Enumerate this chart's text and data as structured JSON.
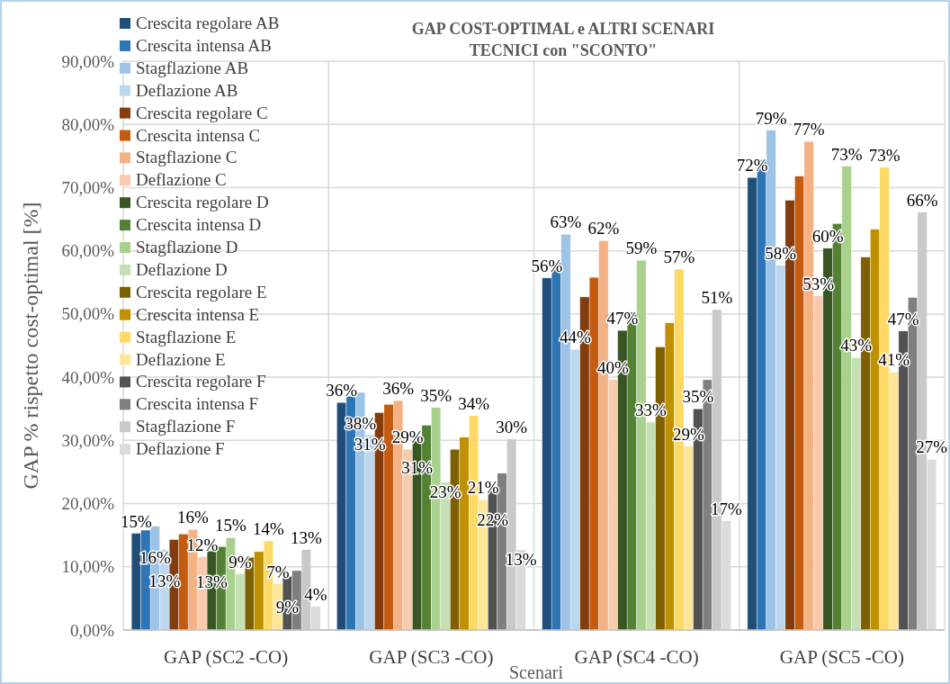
{
  "chart_data": {
    "type": "bar",
    "title": "GAP COST-OPTIMAL e ALTRI SCENARI\nTECNICI con \"SCONTO\"",
    "xlabel": "Scenari",
    "ylabel": "GAP % rispetto cost-optimal [%]",
    "categories": [
      "GAP (SC2 -CO)",
      "GAP (SC3 -CO)",
      "GAP (SC4 -CO)",
      "GAP (SC5 -CO)"
    ],
    "ylim": [
      0,
      90
    ],
    "yticks": [
      {
        "value": 0,
        "label": "0,00%"
      },
      {
        "value": 10,
        "label": "10,00%"
      },
      {
        "value": 20,
        "label": "20,00%"
      },
      {
        "value": 30,
        "label": "30,00%"
      },
      {
        "value": 40,
        "label": "40,00%"
      },
      {
        "value": 50,
        "label": "50,00%"
      },
      {
        "value": 60,
        "label": "60,00%"
      },
      {
        "value": 70,
        "label": "70,00%"
      },
      {
        "value": 80,
        "label": "80,00%"
      },
      {
        "value": 90,
        "label": "90,00%"
      }
    ],
    "grid": true,
    "legend": "top left",
    "series": [
      {
        "name": "Crescita regolare AB",
        "color": "#1f4e79",
        "values": [
          15.3,
          36.0,
          55.7,
          71.6
        ],
        "value_labels": [
          "15%",
          "36%",
          "56%",
          "72%"
        ]
      },
      {
        "name": "Crescita intensa AB",
        "color": "#2e75b6",
        "values": [
          15.8,
          37.0,
          58.1,
          74.4
        ]
      },
      {
        "name": "Stagflazione AB",
        "color": "#9dc3e6",
        "values": [
          16.4,
          37.6,
          62.6,
          79.1
        ],
        "value_labels": [
          "16%",
          "38%",
          "63%",
          "79%"
        ]
      },
      {
        "name": "Deflazione AB",
        "color": "#bdd7ee",
        "values": [
          12.7,
          30.9,
          44.4,
          57.7
        ],
        "value_labels": [
          "13%",
          "31%",
          "44%",
          "58%"
        ]
      },
      {
        "name": "Crescita regolare C",
        "color": "#843c0c",
        "values": [
          14.3,
          34.4,
          52.7,
          68.0
        ]
      },
      {
        "name": "Crescita intensa C",
        "color": "#c55a11",
        "values": [
          15.2,
          35.7,
          55.8,
          71.8
        ]
      },
      {
        "name": "Stagflazione C",
        "color": "#f4b183",
        "values": [
          15.9,
          36.3,
          61.6,
          77.3
        ],
        "value_labels": [
          "16%",
          "36%",
          "62%",
          "77%"
        ]
      },
      {
        "name": "Deflazione C",
        "color": "#f8cbad",
        "values": [
          11.6,
          28.6,
          39.6,
          52.9
        ],
        "value_labels": [
          "12%",
          "29%",
          "40%",
          "53%"
        ]
      },
      {
        "name": "Crescita regolare D",
        "color": "#375623",
        "values": [
          12.5,
          30.6,
          47.4,
          60.4
        ],
        "value_labels": [
          "13%",
          "31%",
          "47%",
          "60%"
        ]
      },
      {
        "name": "Crescita intensa D",
        "color": "#548235",
        "values": [
          13.2,
          32.4,
          50.3,
          64.3
        ]
      },
      {
        "name": "Stagflazione D",
        "color": "#a9d18e",
        "values": [
          14.6,
          35.2,
          58.5,
          73.4
        ],
        "value_labels": [
          "15%",
          "35%",
          "59%",
          "73%"
        ]
      },
      {
        "name": "Deflazione D",
        "color": "#c5e0b4",
        "values": [
          8.9,
          23.4,
          32.9,
          43.1
        ],
        "value_labels": [
          "9%",
          "23%",
          "33%",
          "43%"
        ]
      },
      {
        "name": "Crescita regolare E",
        "color": "#7f6000",
        "values": [
          11.5,
          28.6,
          44.8,
          59.0
        ]
      },
      {
        "name": "Crescita intensa E",
        "color": "#bf9000",
        "values": [
          12.4,
          30.5,
          48.6,
          63.4
        ]
      },
      {
        "name": "Stagflazione E",
        "color": "#ffd966",
        "values": [
          14.1,
          33.9,
          57.1,
          73.2
        ],
        "value_labels": [
          "14%",
          "34%",
          "57%",
          "73%"
        ]
      },
      {
        "name": "Deflazione E",
        "color": "#ffe699",
        "values": [
          7.3,
          20.6,
          29.1,
          40.8
        ],
        "value_labels": [
          "7%",
          "21%",
          "29%",
          "41%"
        ]
      },
      {
        "name": "Crescita regolare F",
        "color": "#525252",
        "values": [
          8.5,
          22.3,
          35.0,
          47.3
        ],
        "value_labels": [
          "9%",
          "22%",
          "35%",
          "47%"
        ]
      },
      {
        "name": "Crescita intensa F",
        "color": "#7f7f7f",
        "values": [
          9.4,
          24.8,
          39.6,
          52.6
        ]
      },
      {
        "name": "Stagflazione F",
        "color": "#c9c9c9",
        "values": [
          12.7,
          30.2,
          50.7,
          66.1
        ],
        "value_labels": [
          "13%",
          "30%",
          "51%",
          "66%"
        ]
      },
      {
        "name": "Deflazione F",
        "color": "#dbdbdb",
        "values": [
          3.7,
          12.7,
          17.3,
          27.0
        ],
        "value_labels": [
          "4%",
          "13%",
          "17%",
          "27%"
        ]
      }
    ]
  }
}
